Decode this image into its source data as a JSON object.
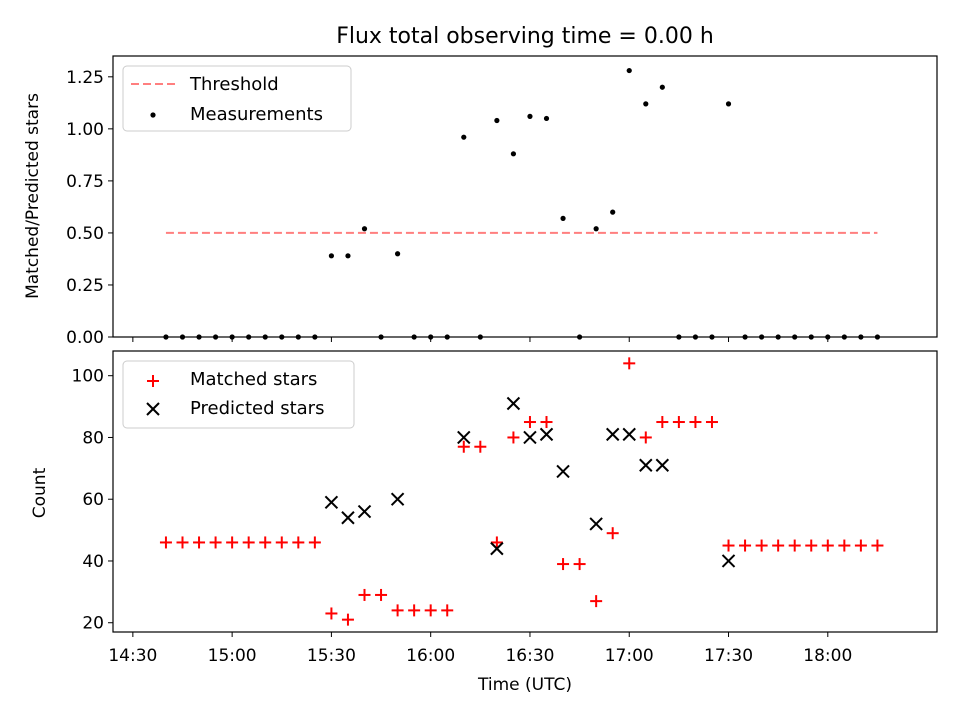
{
  "chart_data": {
    "type": "scatter",
    "title": "Flux total observing time = 0.00 h",
    "xlabel": "Time (UTC)",
    "x_ticks": [
      "14:30",
      "15:00",
      "15:30",
      "16:00",
      "16:30",
      "17:00",
      "17:30",
      "18:00"
    ],
    "x_range": [
      "14:24",
      "18:33"
    ],
    "panels": [
      {
        "id": "ratio",
        "ylabel": "Matched/Predicted stars",
        "ylim": [
          0,
          1.35
        ],
        "y_ticks": [
          "0.00",
          "0.25",
          "0.50",
          "0.75",
          "1.00",
          "1.25"
        ],
        "legend": "top-left",
        "series": [
          {
            "name": "Threshold",
            "style": "dashed-line",
            "color": "#ff7f7f",
            "x": [
              "14:40",
              "18:15"
            ],
            "y": [
              0.5,
              0.5
            ]
          },
          {
            "name": "Measurements",
            "style": "dot",
            "color": "#000000",
            "x": [
              "14:40",
              "14:45",
              "14:50",
              "14:55",
              "15:00",
              "15:05",
              "15:10",
              "15:15",
              "15:20",
              "15:25",
              "15:30",
              "15:35",
              "15:40",
              "15:45",
              "15:50",
              "15:55",
              "16:00",
              "16:05",
              "16:10",
              "16:15",
              "16:20",
              "16:25",
              "16:30",
              "16:35",
              "16:40",
              "16:45",
              "16:50",
              "16:55",
              "17:00",
              "17:05",
              "17:10",
              "17:15",
              "17:20",
              "17:25",
              "17:30",
              "17:35",
              "17:40",
              "17:45",
              "17:50",
              "17:55",
              "18:00",
              "18:05",
              "18:10",
              "18:15"
            ],
            "y": [
              0,
              0,
              0,
              0,
              0,
              0,
              0,
              0,
              0,
              0,
              0.39,
              0.39,
              0.52,
              0,
              0.4,
              0,
              0,
              0,
              0.96,
              0,
              1.04,
              0.88,
              1.06,
              1.05,
              0.57,
              0,
              0.52,
              0.6,
              1.28,
              1.12,
              1.2,
              0,
              0,
              0,
              1.12,
              0,
              0,
              0,
              0,
              0,
              0,
              0,
              0,
              0
            ]
          }
        ]
      },
      {
        "id": "count",
        "ylabel": "Count",
        "ylim": [
          17,
          108
        ],
        "y_ticks": [
          "20",
          "40",
          "60",
          "80",
          "100"
        ],
        "legend": "top-left",
        "series": [
          {
            "name": "Matched stars",
            "style": "plus",
            "color": "#ff0000",
            "x": [
              "14:40",
              "14:45",
              "14:50",
              "14:55",
              "15:00",
              "15:05",
              "15:10",
              "15:15",
              "15:20",
              "15:25",
              "15:30",
              "15:35",
              "15:40",
              "15:45",
              "15:50",
              "15:55",
              "16:00",
              "16:05",
              "16:10",
              "16:15",
              "16:20",
              "16:25",
              "16:30",
              "16:35",
              "16:40",
              "16:45",
              "16:50",
              "16:55",
              "17:00",
              "17:05",
              "17:10",
              "17:15",
              "17:20",
              "17:25",
              "17:30",
              "17:35",
              "17:40",
              "17:45",
              "17:50",
              "17:55",
              "18:00",
              "18:05",
              "18:10",
              "18:15"
            ],
            "y": [
              46,
              46,
              46,
              46,
              46,
              46,
              46,
              46,
              46,
              46,
              23,
              21,
              29,
              29,
              24,
              24,
              24,
              24,
              77,
              77,
              46,
              80,
              85,
              85,
              39,
              39,
              27,
              49,
              104,
              80,
              85,
              85,
              85,
              85,
              45,
              45,
              45,
              45,
              45,
              45,
              45,
              45,
              45,
              45
            ]
          },
          {
            "name": "Predicted stars",
            "style": "x",
            "color": "#000000",
            "x": [
              "15:30",
              "15:35",
              "15:40",
              "15:50",
              "16:10",
              "16:20",
              "16:25",
              "16:30",
              "16:35",
              "16:40",
              "16:50",
              "16:55",
              "17:00",
              "17:05",
              "17:10",
              "17:30"
            ],
            "y": [
              59,
              54,
              56,
              60,
              80,
              44,
              91,
              80,
              81,
              69,
              52,
              81,
              81,
              71,
              71,
              40
            ]
          }
        ]
      }
    ]
  }
}
